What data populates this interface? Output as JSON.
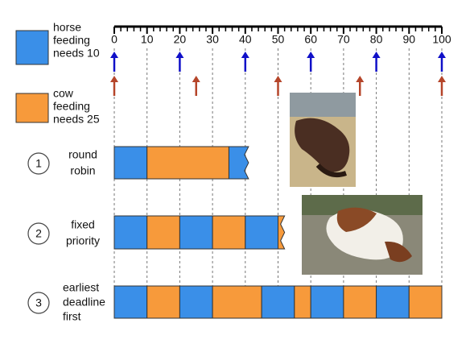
{
  "axis": {
    "xlim": [
      0,
      100
    ],
    "ticks": [
      0,
      10,
      20,
      30,
      40,
      50,
      60,
      70,
      80,
      90,
      100
    ]
  },
  "legend": [
    {
      "lines": [
        "horse",
        "feeding",
        "needs 10"
      ],
      "color": "#3a8fe8"
    },
    {
      "lines": [
        "cow",
        "feeding",
        "needs 25"
      ],
      "color": "#f79a3b"
    }
  ],
  "arrows": [
    {
      "color": "#1010c8",
      "positions": [
        0,
        20,
        40,
        60,
        80,
        100
      ]
    },
    {
      "color": "#b5452a",
      "positions": [
        0,
        25,
        50,
        75,
        100
      ]
    }
  ],
  "rows": [
    {
      "number": "1",
      "lines": [
        "round",
        "robin"
      ],
      "segments": [
        {
          "color": "#3a8fe8",
          "start": 0,
          "end": 10
        },
        {
          "color": "#f79a3b",
          "start": 10,
          "end": 35
        },
        {
          "color": "#3a8fe8",
          "start": 35,
          "end": 41,
          "cut": true
        }
      ]
    },
    {
      "number": "2",
      "lines": [
        "fixed",
        "priority"
      ],
      "segments": [
        {
          "color": "#3a8fe8",
          "start": 0,
          "end": 10
        },
        {
          "color": "#f79a3b",
          "start": 10,
          "end": 20
        },
        {
          "color": "#3a8fe8",
          "start": 20,
          "end": 30
        },
        {
          "color": "#f79a3b",
          "start": 30,
          "end": 40
        },
        {
          "color": "#3a8fe8",
          "start": 40,
          "end": 50
        },
        {
          "color": "#f79a3b",
          "start": 50,
          "end": 52,
          "cut": true
        }
      ]
    },
    {
      "number": "3",
      "lines": [
        "earliest",
        "deadline",
        "first"
      ],
      "segments": [
        {
          "color": "#3a8fe8",
          "start": 0,
          "end": 10
        },
        {
          "color": "#f79a3b",
          "start": 10,
          "end": 20
        },
        {
          "color": "#3a8fe8",
          "start": 20,
          "end": 30
        },
        {
          "color": "#f79a3b",
          "start": 30,
          "end": 45
        },
        {
          "color": "#3a8fe8",
          "start": 45,
          "end": 55
        },
        {
          "color": "#f79a3b",
          "start": 55,
          "end": 60
        },
        {
          "color": "#3a8fe8",
          "start": 60,
          "end": 70
        },
        {
          "color": "#f79a3b",
          "start": 70,
          "end": 80
        },
        {
          "color": "#3a8fe8",
          "start": 80,
          "end": 90
        },
        {
          "color": "#f79a3b",
          "start": 90,
          "end": 100
        }
      ]
    }
  ]
}
